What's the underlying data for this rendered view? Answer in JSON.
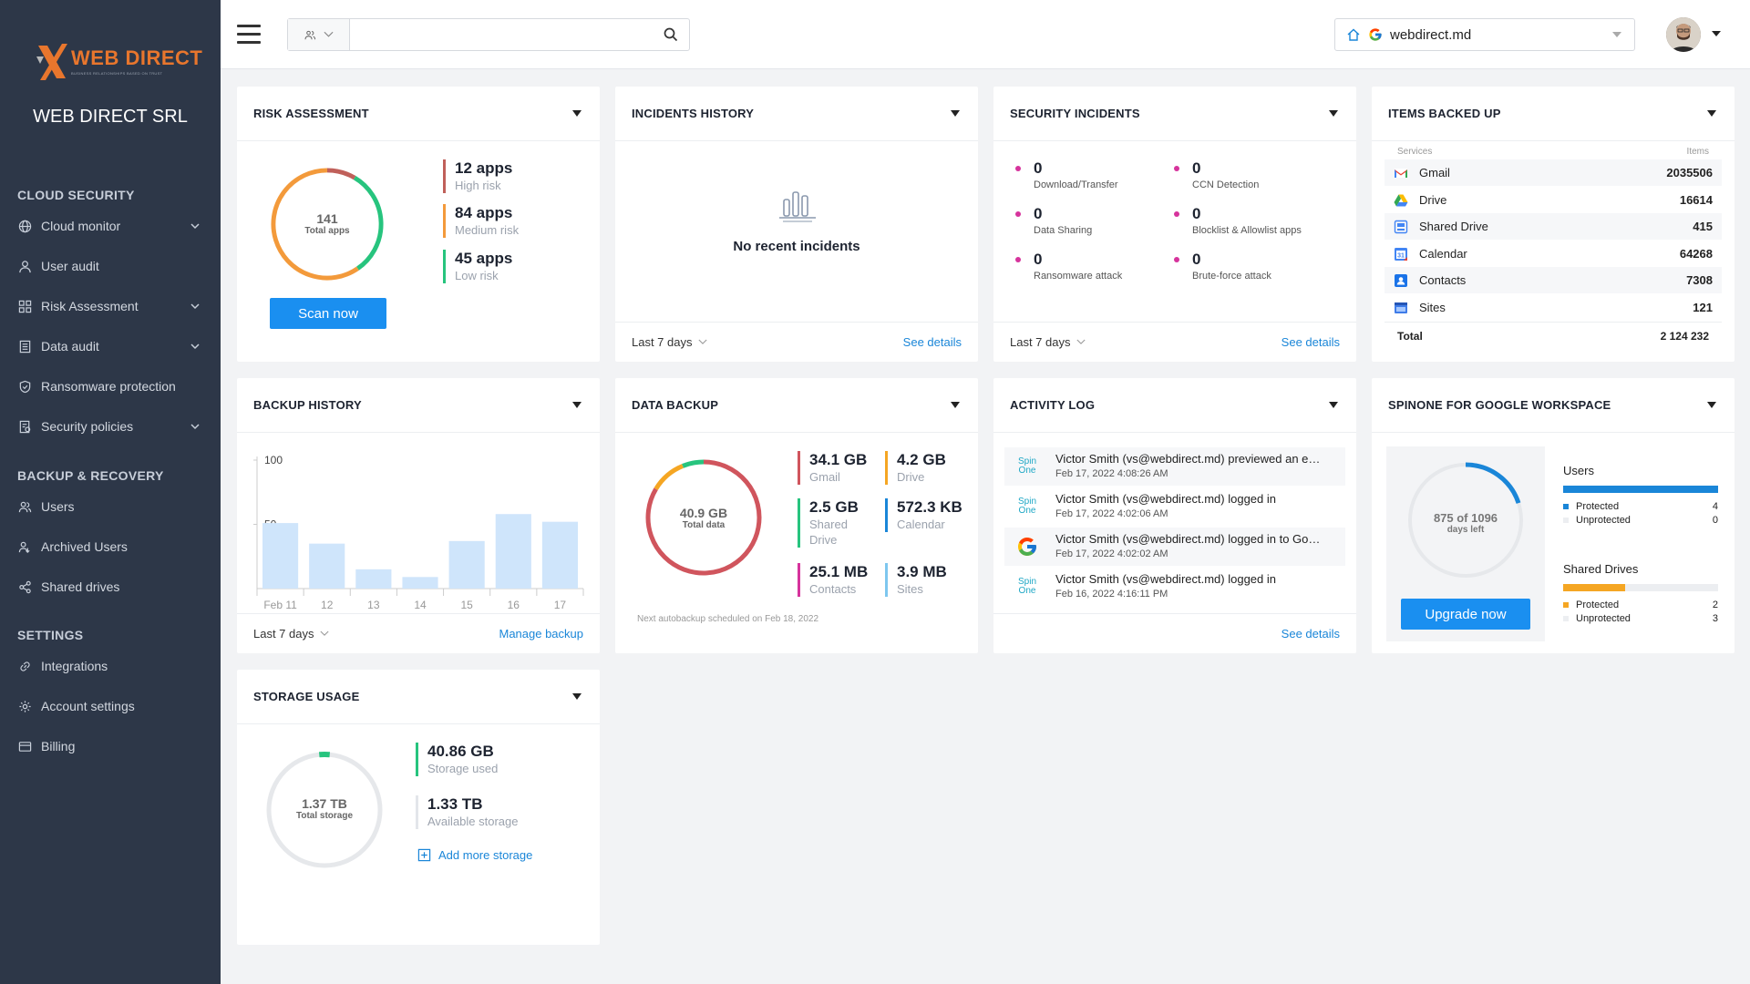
{
  "sidebar": {
    "logo_text": "WEB DIRECT",
    "logo_tagline": "BUSINESS RELATIONSHIPS BASED ON TRUST",
    "org_name": "WEB DIRECT SRL",
    "sections": [
      {
        "title": "CLOUD SECURITY",
        "items": [
          {
            "label": "Cloud monitor",
            "icon": "globe-icon",
            "expandable": true
          },
          {
            "label": "User audit",
            "icon": "user-icon",
            "expandable": false
          },
          {
            "label": "Risk Assessment",
            "icon": "grid-icon",
            "expandable": true
          },
          {
            "label": "Data audit",
            "icon": "document-icon",
            "expandable": true
          },
          {
            "label": "Ransomware protection",
            "icon": "shield-icon",
            "expandable": false
          },
          {
            "label": "Security policies",
            "icon": "policy-icon",
            "expandable": true
          }
        ]
      },
      {
        "title": "BACKUP & RECOVERY",
        "items": [
          {
            "label": "Users",
            "icon": "users-icon"
          },
          {
            "label": "Archived Users",
            "icon": "archived-users-icon"
          },
          {
            "label": "Shared drives",
            "icon": "share-icon"
          }
        ]
      },
      {
        "title": "SETTINGS",
        "items": [
          {
            "label": "Integrations",
            "icon": "link-icon"
          },
          {
            "label": "Account settings",
            "icon": "gear-icon"
          },
          {
            "label": "Billing",
            "icon": "credit-card-icon"
          }
        ]
      }
    ]
  },
  "topbar": {
    "search_value": "",
    "domain": "webdirect.md"
  },
  "risk": {
    "title": "RISK ASSESSMENT",
    "total_value": "141",
    "total_label": "Total apps",
    "high_value": "12 apps",
    "high_label": "High risk",
    "high_count": 12,
    "medium_value": "84 apps",
    "medium_label": "Medium risk",
    "medium_count": 84,
    "low_value": "45 apps",
    "low_label": "Low risk",
    "low_count": 45,
    "button": "Scan now",
    "colors": {
      "high": "#c0605a",
      "medium": "#f39a3b",
      "low": "#27c47e"
    }
  },
  "incidents": {
    "title": "INCIDENTS HISTORY",
    "empty_text": "No recent incidents",
    "period": "Last 7 days",
    "link": "See details"
  },
  "security": {
    "title": "SECURITY INCIDENTS",
    "items": [
      {
        "value": "0",
        "label": "Download/Transfer"
      },
      {
        "value": "0",
        "label": "CCN Detection"
      },
      {
        "value": "0",
        "label": "Data Sharing"
      },
      {
        "value": "0",
        "label": "Blocklist & Allowlist apps"
      },
      {
        "value": "0",
        "label": "Ransomware attack"
      },
      {
        "value": "0",
        "label": "Brute-force attack"
      }
    ],
    "period": "Last 7 days",
    "link": "See details"
  },
  "backed": {
    "title": "ITEMS BACKED UP",
    "col_services": "Services",
    "col_items": "Items",
    "rows": [
      {
        "service": "Gmail",
        "items": "2035506",
        "icon": "gmail-icon"
      },
      {
        "service": "Drive",
        "items": "16614",
        "icon": "drive-icon"
      },
      {
        "service": "Shared Drive",
        "items": "415",
        "icon": "shared-drive-icon"
      },
      {
        "service": "Calendar",
        "items": "64268",
        "icon": "calendar-icon"
      },
      {
        "service": "Contacts",
        "items": "7308",
        "icon": "contacts-icon"
      },
      {
        "service": "Sites",
        "items": "121",
        "icon": "sites-icon"
      }
    ],
    "total_label": "Total",
    "total_value": "2 124 232"
  },
  "backup_history": {
    "title": "BACKUP HISTORY",
    "period": "Last 7 days",
    "link": "Manage backup"
  },
  "chart_data": {
    "type": "bar",
    "categories": [
      "Feb 11",
      "12",
      "13",
      "14",
      "15",
      "16",
      "17"
    ],
    "values": [
      51,
      35,
      15,
      9,
      37,
      58,
      52
    ],
    "yticks": [
      "100",
      "50"
    ],
    "ylim": [
      0,
      100
    ],
    "bar_color": "#cfe5fb"
  },
  "data_backup": {
    "title": "DATA BACKUP",
    "total_value": "40.9 GB",
    "total_label": "Total data",
    "stats": [
      {
        "value": "34.1 GB",
        "label": "Gmail",
        "color": "#d0555d"
      },
      {
        "value": "4.2 GB",
        "label": "Drive",
        "color": "#f5a623"
      },
      {
        "value": "2.5 GB",
        "label": "Shared Drive",
        "color": "#27c47e"
      },
      {
        "value": "572.3 KB",
        "label": "Calendar",
        "color": "#1a86d8"
      },
      {
        "value": "25.1 MB",
        "label": "Contacts",
        "color": "#d6339c"
      },
      {
        "value": "3.9 MB",
        "label": "Sites",
        "color": "#7ec7ef"
      }
    ],
    "note": "Next autobackup scheduled on Feb 18, 2022"
  },
  "activity": {
    "title": "ACTIVITY LOG",
    "rows": [
      {
        "text": "Victor Smith (vs@webdirect.md) previewed an e…",
        "date": "Feb 17, 2022 4:08:26 AM",
        "icon": "spinone-icon"
      },
      {
        "text": "Victor Smith (vs@webdirect.md) logged in",
        "date": "Feb 17, 2022 4:02:06 AM",
        "icon": "spinone-icon"
      },
      {
        "text": "Victor Smith (vs@webdirect.md) logged in to Go…",
        "date": "Feb 17, 2022 4:02:02 AM",
        "icon": "google-icon"
      },
      {
        "text": "Victor Smith (vs@webdirect.md) logged in",
        "date": "Feb 16, 2022 4:16:11 PM",
        "icon": "spinone-icon"
      }
    ],
    "spin_label_1": "Spin",
    "spin_label_2": "One",
    "link": "See details"
  },
  "spinone": {
    "title": "SPINONE FOR GOOGLE WORKSPACE",
    "days_value": "875 of 1096",
    "days_label": "days left",
    "days_fraction": 0.2,
    "button": "Upgrade now",
    "users_title": "Users",
    "users_protected_label": "Protected",
    "users_protected": "4",
    "users_unprotected_label": "Unprotected",
    "users_unprotected": "0",
    "users_fraction": 1.0,
    "drives_title": "Shared Drives",
    "drives_protected_label": "Protected",
    "drives_protected": "2",
    "drives_unprotected_label": "Unprotected",
    "drives_unprotected": "3",
    "drives_fraction": 0.4
  },
  "storage": {
    "title": "STORAGE USAGE",
    "total_value": "1.37 TB",
    "total_label": "Total storage",
    "used_value": "40.86 GB",
    "used_label": "Storage used",
    "avail_value": "1.33 TB",
    "avail_label": "Available storage",
    "used_fraction": 0.03,
    "add_link": "Add more storage"
  }
}
